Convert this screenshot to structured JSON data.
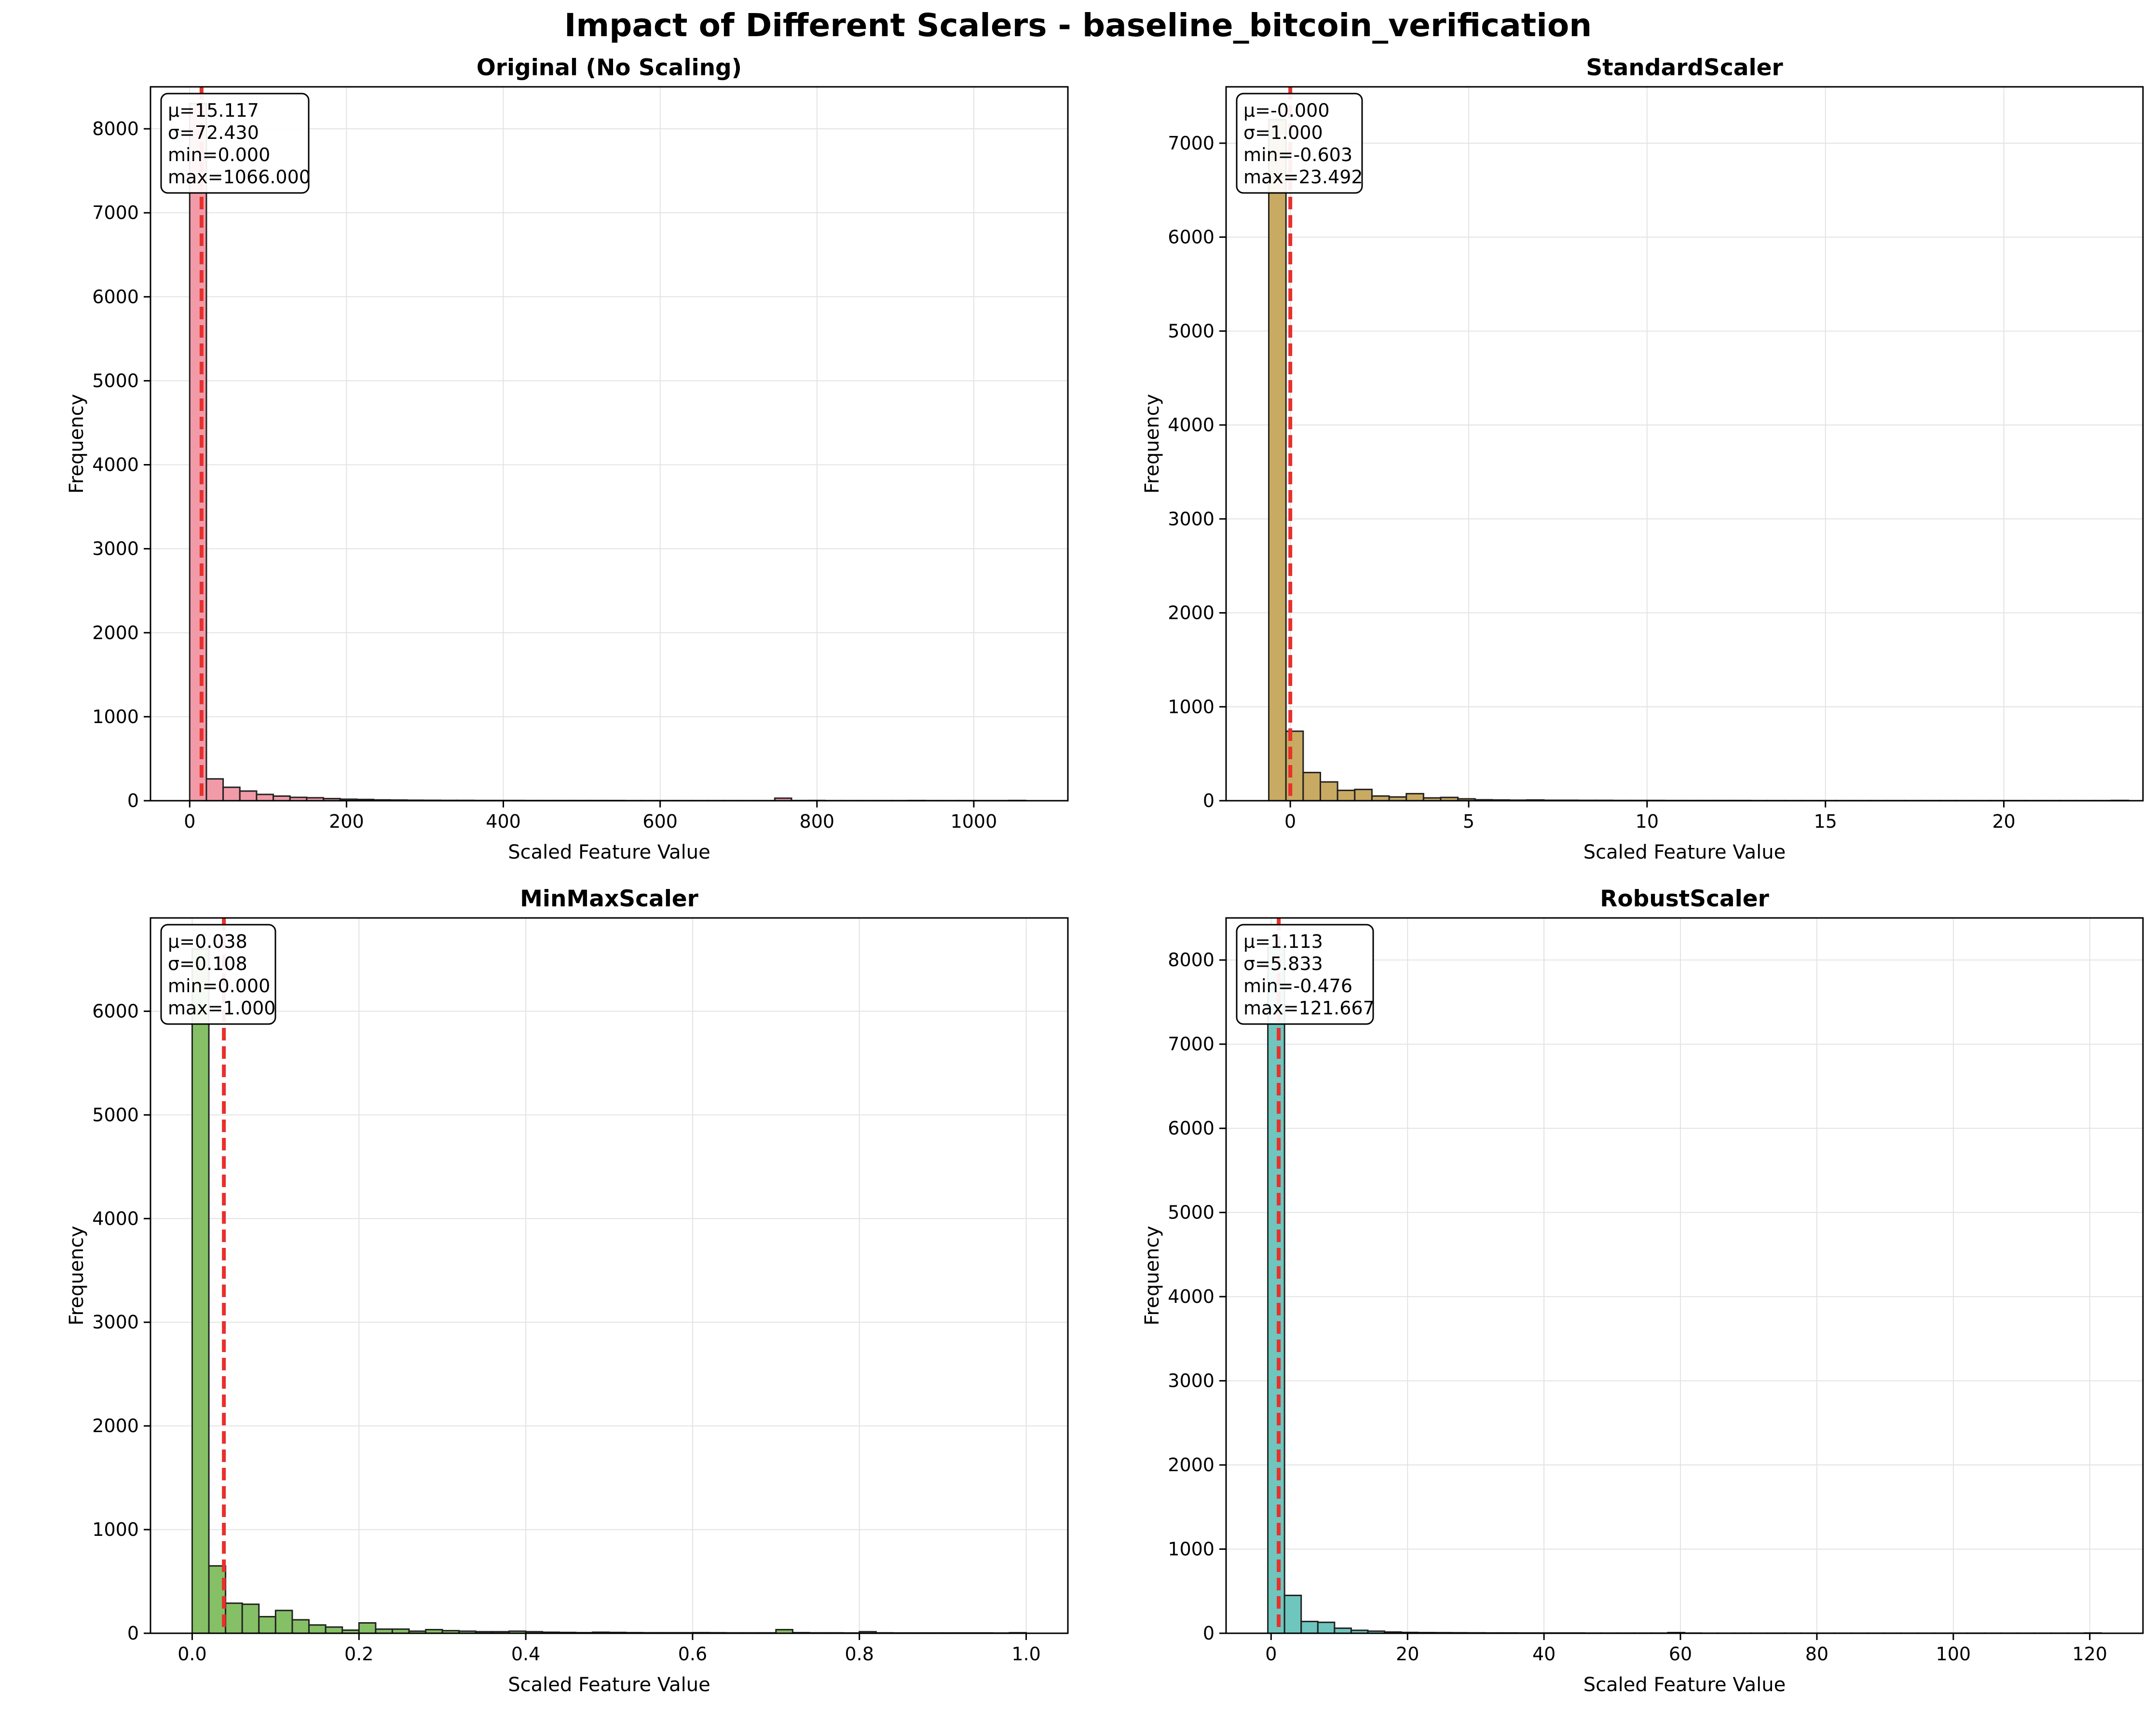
{
  "figure": {
    "title": "Impact of Different Scalers - baseline_bitcoin_verification"
  },
  "chart_data": [
    {
      "type": "bar",
      "title": "Original (No Scaling)",
      "xlabel": "Scaled Feature Value",
      "ylabel": "Frequency",
      "xlim": [
        -50,
        1120
      ],
      "ylim": [
        0,
        8500
      ],
      "xticks": [
        0,
        200,
        400,
        600,
        800,
        1000
      ],
      "yticks": [
        0,
        1000,
        2000,
        3000,
        4000,
        5000,
        6000,
        7000,
        8000
      ],
      "grid": true,
      "color": "#f29ba8",
      "mean_line": 15.117,
      "bin_range": [
        0,
        1066
      ],
      "bins": 50,
      "values": [
        8300,
        260,
        160,
        115,
        75,
        55,
        40,
        35,
        25,
        18,
        15,
        10,
        8,
        6,
        5,
        4,
        4,
        3,
        3,
        3,
        2,
        2,
        2,
        2,
        2,
        2,
        1,
        1,
        1,
        1,
        1,
        1,
        1,
        1,
        1,
        30,
        2,
        3,
        1,
        1,
        1,
        1,
        1,
        2,
        1,
        1,
        1,
        1,
        1,
        3
      ],
      "stats": [
        "μ=15.117",
        "σ=72.430",
        "min=0.000",
        "max=1066.000"
      ]
    },
    {
      "type": "bar",
      "title": "StandardScaler",
      "xlabel": "Scaled Feature Value",
      "ylabel": "Frequency",
      "xlim": [
        -1.8,
        23.9
      ],
      "ylim": [
        0,
        7600
      ],
      "xticks": [
        0,
        5,
        10,
        15,
        20
      ],
      "yticks": [
        0,
        1000,
        2000,
        3000,
        4000,
        5000,
        6000,
        7000
      ],
      "grid": true,
      "color": "#c9aa62",
      "mean_line": 0.0,
      "bin_range": [
        -0.603,
        23.492
      ],
      "bins": 50,
      "values": [
        7250,
        740,
        300,
        200,
        110,
        120,
        50,
        40,
        75,
        30,
        35,
        20,
        10,
        8,
        6,
        8,
        5,
        5,
        4,
        4,
        3,
        3,
        3,
        2,
        2,
        2,
        2,
        2,
        1,
        1,
        1,
        1,
        1,
        1,
        1,
        1,
        1,
        1,
        1,
        1,
        1,
        1,
        1,
        1,
        1,
        1,
        1,
        1,
        1,
        3
      ],
      "stats": [
        "μ=-0.000",
        "σ=1.000",
        "min=-0.603",
        "max=23.492"
      ]
    },
    {
      "type": "bar",
      "title": "MinMaxScaler",
      "xlabel": "Scaled Feature Value",
      "ylabel": "Frequency",
      "xlim": [
        -0.05,
        1.05
      ],
      "ylim": [
        0,
        6900
      ],
      "xticks": [
        0.0,
        0.2,
        0.4,
        0.6,
        0.8,
        1.0
      ],
      "xtick_labels": [
        "0.0",
        "0.2",
        "0.4",
        "0.6",
        "0.8",
        "1.0"
      ],
      "yticks": [
        0,
        1000,
        2000,
        3000,
        4000,
        5000,
        6000
      ],
      "grid": true,
      "color": "#85c066",
      "mean_line": 0.038,
      "bin_range": [
        0,
        1
      ],
      "bins": 50,
      "values": [
        6600,
        650,
        290,
        280,
        160,
        220,
        130,
        80,
        60,
        30,
        100,
        40,
        40,
        20,
        35,
        25,
        20,
        15,
        15,
        20,
        15,
        10,
        8,
        6,
        10,
        8,
        6,
        5,
        5,
        5,
        6,
        5,
        4,
        4,
        4,
        35,
        6,
        4,
        4,
        3,
        15,
        4,
        3,
        3,
        3,
        3,
        3,
        3,
        2,
        5
      ],
      "stats": [
        "μ=0.038",
        "σ=0.108",
        "min=0.000",
        "max=1.000"
      ]
    },
    {
      "type": "bar",
      "title": "RobustScaler",
      "xlabel": "Scaled Feature Value",
      "ylabel": "Frequency",
      "xlim": [
        -6.6,
        127.8
      ],
      "ylim": [
        0,
        8500
      ],
      "xticks": [
        0,
        20,
        40,
        60,
        80,
        100,
        120
      ],
      "yticks": [
        0,
        1000,
        2000,
        3000,
        4000,
        5000,
        6000,
        7000,
        8000
      ],
      "grid": true,
      "color": "#6ec6be",
      "mean_line": 1.113,
      "bin_range": [
        -0.476,
        121.667
      ],
      "bins": 50,
      "values": [
        8150,
        450,
        140,
        130,
        60,
        35,
        25,
        15,
        10,
        8,
        7,
        6,
        5,
        4,
        4,
        3,
        3,
        3,
        3,
        2,
        2,
        2,
        2,
        2,
        8,
        2,
        1,
        1,
        1,
        1,
        1,
        1,
        1,
        1,
        1,
        1,
        1,
        1,
        1,
        1,
        1,
        1,
        1,
        1,
        1,
        1,
        1,
        1,
        1,
        3
      ],
      "stats": [
        "μ=1.113",
        "σ=5.833",
        "min=-0.476",
        "max=121.667"
      ]
    }
  ]
}
